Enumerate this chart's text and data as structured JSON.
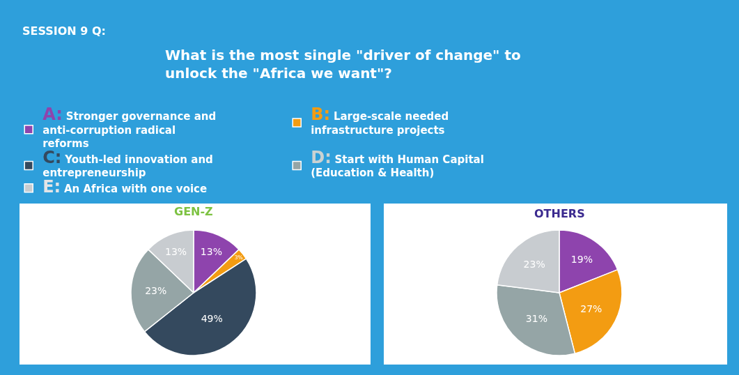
{
  "chart_data": [
    {
      "type": "other",
      "title": "SESSION 9 Q:",
      "subtitle": "What is the most single \"driver of change\" to unlock the \"Africa we want\"?"
    },
    {
      "type": "pie",
      "title": "GEN-Z",
      "categories": [
        "A: Stronger governance and anti-corruption radical reforms",
        "B: Large-scale needed infrastructure projects",
        "C: Youth-led innovation and entrepreneurship",
        "D: Start with Human Capital (Education & Health)",
        "E: An Africa with one voice"
      ],
      "values": [
        13,
        3,
        49,
        23,
        13
      ],
      "value_labels": [
        "13%",
        "3%",
        "49%",
        "23%",
        "13%"
      ],
      "colors": [
        "#8e44ad",
        "#f39c12",
        "#34495e",
        "#95a5a6",
        "#c8ccd0"
      ],
      "legend": "top"
    },
    {
      "type": "pie",
      "title": "OTHERS",
      "categories": [
        null,
        null,
        null,
        null,
        null
      ],
      "values": [
        19,
        27,
        null,
        31,
        23
      ],
      "value_labels": [
        "19%",
        "27%",
        null,
        "31%",
        "23%"
      ],
      "colors": [
        "#8e44ad",
        "#f39c12",
        "#34495e",
        "#95a5a6",
        "#c8ccd0"
      ]
    }
  ]
}
